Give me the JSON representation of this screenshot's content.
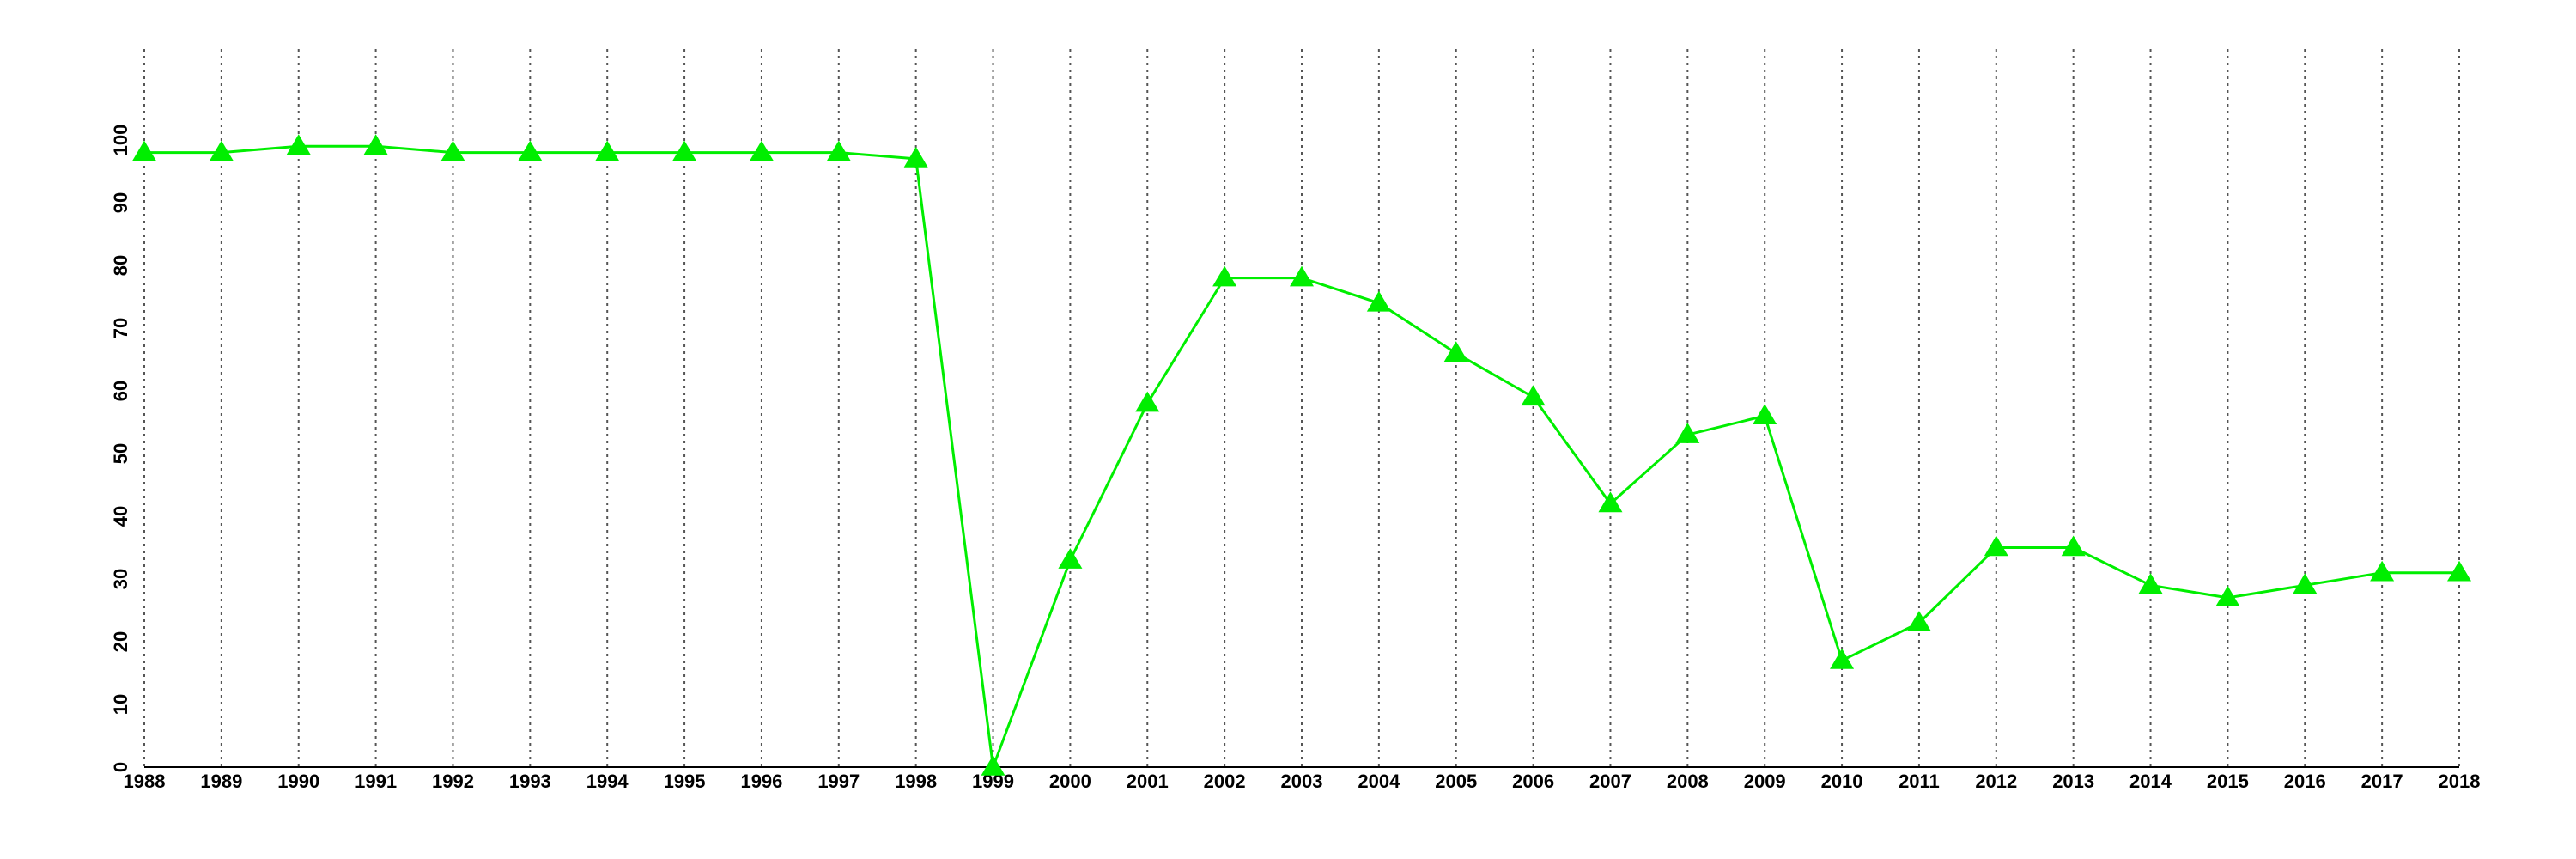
{
  "chart_data": {
    "type": "line",
    "x": [
      1988,
      1989,
      1990,
      1991,
      1992,
      1993,
      1994,
      1995,
      1996,
      1997,
      1998,
      1999,
      2000,
      2001,
      2002,
      2003,
      2004,
      2005,
      2006,
      2007,
      2008,
      2009,
      2010,
      2011,
      2012,
      2013,
      2014,
      2015,
      2016,
      2017,
      2018
    ],
    "series": [
      {
        "color": "#00ee00",
        "marker": "triangle",
        "values": [
          98,
          98,
          99,
          99,
          98,
          98,
          98,
          98,
          98,
          98,
          97,
          0,
          33,
          58,
          78,
          78,
          74,
          66,
          59,
          42,
          53,
          56,
          17,
          23,
          35,
          35,
          29,
          27,
          29,
          31,
          31
        ]
      }
    ],
    "xlim": [
      1988,
      2018
    ],
    "xticks": [
      1988,
      1989,
      1990,
      1991,
      1992,
      1993,
      1994,
      1995,
      1996,
      1997,
      1998,
      1999,
      2000,
      2001,
      2002,
      2003,
      2004,
      2005,
      2006,
      2007,
      2008,
      2009,
      2010,
      2011,
      2012,
      2013,
      2014,
      2015,
      2016,
      2017,
      2018
    ],
    "ylim": [
      0,
      100
    ],
    "yticks": [
      0,
      10,
      20,
      30,
      40,
      50,
      60,
      70,
      80,
      90,
      100
    ],
    "grid": true
  }
}
